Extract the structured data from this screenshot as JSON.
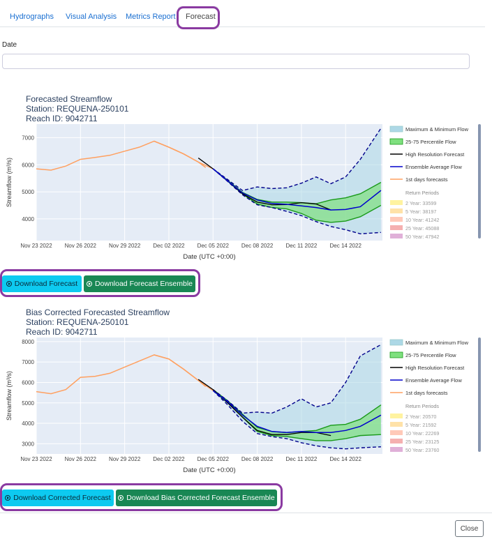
{
  "tabs": [
    "Hydrographs",
    "Visual Analysis",
    "Metrics Report",
    "Forecast"
  ],
  "date": {
    "label": "Date",
    "value": ""
  },
  "colors": {
    "band": "#add8e6",
    "iqr": "#7fe07f",
    "hires": "#000000",
    "ensemble": "#0000cc",
    "first": "#ffa060",
    "dash": "#00008b",
    "plot_bg": "#e5ecf6"
  },
  "charts": [
    {
      "title": [
        "Forecasted Streamflow",
        "Station: REQUENA-250101",
        "Reach ID: 9042711"
      ],
      "ylabel": "Streamflow (m³/s)",
      "xlabel": "Date (UTC +0:00)",
      "x_ticks": [
        "Nov 23 2022",
        "Nov 26 2022",
        "Nov 29 2022",
        "Dec 02 2022",
        "Dec 05 2022",
        "Dec 08 2022",
        "Dec 11 2022",
        "Dec 14 2022"
      ],
      "y_ticks": [
        "7000",
        "6000",
        "5000",
        "4000"
      ],
      "legend": [
        "Maximum & Minimum Flow",
        "25-75 Percentile Flow",
        "High Resolution Forecast",
        "Ensemble Average Flow",
        "1st days forecasts"
      ],
      "return_periods_title": "Return Periods",
      "return_periods": [
        "2 Year: 33599",
        "5 Year: 38197",
        "10 Year: 41242",
        "25 Year: 45088",
        "50 Year: 47942"
      ],
      "buttons": [
        "Download Forecast",
        "Download Forecast Ensemble"
      ]
    },
    {
      "title": [
        "Bias Corrected Forecasted Streamflow",
        "Station: REQUENA-250101",
        "Reach ID: 9042711"
      ],
      "ylabel": "Streamflow (m³/s)",
      "xlabel": "Date (UTC +0:00)",
      "x_ticks": [
        "Nov 23 2022",
        "Nov 26 2022",
        "Nov 29 2022",
        "Dec 02 2022",
        "Dec 05 2022",
        "Dec 08 2022",
        "Dec 11 2022",
        "Dec 14 2022"
      ],
      "y_ticks": [
        "8000",
        "7000",
        "6000",
        "5000",
        "4000",
        "3000"
      ],
      "legend": [
        "Maximum & Minimum Flow",
        "25-75 Percentile Flow",
        "High Resolution Forecast",
        "Ensemble Average Flow",
        "1st days forecasts"
      ],
      "return_periods_title": "Return Periods",
      "return_periods": [
        "2 Year: 20570",
        "5 Year: 21592",
        "10 Year: 22269",
        "25 Year: 23125",
        "50 Year: 23760"
      ],
      "buttons": [
        "Download Corrected Forecast",
        "Download Bias Corrected Forecast Ensemble"
      ]
    }
  ],
  "close_label": "Close",
  "chart_data": [
    {
      "type": "line",
      "title": "Forecasted Streamflow",
      "xlabel": "Date (UTC +0:00)",
      "ylabel": "Streamflow (m³/s)",
      "ylim": [
        3200,
        7500
      ],
      "x_range_days": [
        0,
        23.5
      ],
      "historical": {
        "x": [
          0,
          1,
          2,
          3,
          4,
          5,
          6,
          7,
          8,
          9,
          10,
          11,
          11.5
        ],
        "y": [
          5850,
          5800,
          5950,
          6200,
          6270,
          6350,
          6500,
          6650,
          6870,
          6650,
          6400,
          6100,
          5900
        ]
      },
      "first_days": {
        "x": [
          8,
          9,
          10,
          11,
          12
        ],
        "y": [
          6870,
          6650,
          6400,
          6100,
          5850
        ]
      },
      "ensemble_avg": {
        "x": [
          12,
          13,
          14,
          15,
          16,
          17,
          18,
          19,
          20,
          21,
          22,
          23.4
        ],
        "y": [
          5850,
          5400,
          4960,
          4700,
          4570,
          4540,
          4480,
          4420,
          4330,
          4350,
          4450,
          5050
        ]
      },
      "high_res": {
        "x": [
          11,
          12,
          13,
          14,
          15,
          16,
          17,
          18,
          19,
          20
        ],
        "y": [
          6250,
          5850,
          5400,
          4930,
          4620,
          4520,
          4530,
          4600,
          4550,
          4330
        ]
      },
      "max_flow": {
        "x": [
          12,
          13,
          14,
          15,
          16,
          17,
          18,
          19,
          20,
          21,
          22,
          23.4
        ],
        "y": [
          5850,
          5450,
          5050,
          5180,
          5120,
          5150,
          5320,
          5550,
          5300,
          5550,
          6200,
          7350
        ]
      },
      "min_flow": {
        "x": [
          12,
          13,
          14,
          15,
          16,
          17,
          18,
          19,
          20,
          21,
          22,
          23.4
        ],
        "y": [
          5850,
          5380,
          4890,
          4520,
          4420,
          4280,
          4120,
          3900,
          3720,
          3600,
          3450,
          3500
        ]
      },
      "p75": {
        "x": [
          12,
          13,
          14,
          15,
          16,
          17,
          18,
          19,
          20,
          21,
          22,
          23.4
        ],
        "y": [
          5850,
          5420,
          4980,
          4720,
          4620,
          4620,
          4600,
          4560,
          4700,
          4780,
          4930,
          5350
        ]
      },
      "p25": {
        "x": [
          12,
          13,
          14,
          15,
          16,
          17,
          18,
          19,
          20,
          21,
          22,
          23.4
        ],
        "y": [
          5850,
          5390,
          4920,
          4550,
          4420,
          4370,
          4200,
          3950,
          3870,
          3920,
          4080,
          4500
        ]
      }
    },
    {
      "type": "line",
      "title": "Bias Corrected Forecasted Streamflow",
      "xlabel": "Date (UTC +0:00)",
      "ylabel": "Streamflow (m³/s)",
      "ylim": [
        2500,
        8200
      ],
      "x_range_days": [
        0,
        23.5
      ],
      "historical": {
        "x": [
          0,
          1,
          2,
          3,
          4,
          5,
          6,
          7,
          8,
          9,
          10,
          11,
          11.5
        ],
        "y": [
          5550,
          5450,
          5650,
          6250,
          6300,
          6450,
          6750,
          7050,
          7350,
          7150,
          6650,
          6100,
          5800
        ]
      },
      "first_days": {
        "x": [
          8,
          9,
          10,
          11,
          12
        ],
        "y": [
          7350,
          7150,
          6650,
          6100,
          5600
        ]
      },
      "ensemble_avg": {
        "x": [
          12,
          13,
          14,
          15,
          16,
          17,
          18,
          19,
          20,
          21,
          22,
          23.4
        ],
        "y": [
          5600,
          5050,
          4400,
          3850,
          3600,
          3550,
          3600,
          3550,
          3550,
          3650,
          3850,
          4400
        ]
      },
      "high_res": {
        "x": [
          11,
          12,
          13,
          14,
          15,
          16,
          17,
          18,
          19,
          20
        ],
        "y": [
          6150,
          5650,
          5000,
          4300,
          3650,
          3450,
          3450,
          3550,
          3550,
          3400
        ]
      },
      "max_flow": {
        "x": [
          12,
          13,
          14,
          15,
          16,
          17,
          18,
          19,
          20,
          21,
          22,
          23.4
        ],
        "y": [
          5650,
          5100,
          4500,
          4550,
          4500,
          4800,
          5200,
          4800,
          5000,
          6000,
          7300,
          7850
        ]
      },
      "min_flow": {
        "x": [
          12,
          13,
          14,
          15,
          16,
          17,
          18,
          19,
          20,
          21,
          22,
          23.4
        ],
        "y": [
          5600,
          4900,
          4100,
          3500,
          3350,
          3250,
          3050,
          2900,
          2800,
          2750,
          2800,
          2850
        ]
      },
      "p75": {
        "x": [
          12,
          13,
          14,
          15,
          16,
          17,
          18,
          19,
          20,
          21,
          22,
          23.4
        ],
        "y": [
          5650,
          5100,
          4450,
          3800,
          3600,
          3550,
          3600,
          3650,
          3900,
          3950,
          4200,
          4900
        ]
      },
      "p25": {
        "x": [
          12,
          13,
          14,
          15,
          16,
          17,
          18,
          19,
          20,
          21,
          22,
          23.4
        ],
        "y": [
          5600,
          5000,
          4300,
          3600,
          3400,
          3350,
          3250,
          3150,
          3150,
          3250,
          3400,
          3450
        ]
      }
    }
  ]
}
